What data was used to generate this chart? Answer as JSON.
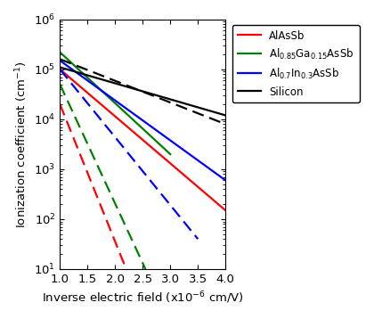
{
  "xlabel": "Inverse electric field (x10$^{-6}$ cm/V)",
  "ylabel": "Ionization coefficient (cm$^{-1}$)",
  "xlim": [
    1.0,
    4.0
  ],
  "ylim": [
    10,
    1000000.0
  ],
  "xticks": [
    1.0,
    1.5,
    2.0,
    2.5,
    3.0,
    3.5,
    4.0
  ],
  "lines": [
    {
      "color": "red",
      "label": "AlAsSb",
      "solid": {
        "x0": 1.0,
        "x1": 4.0,
        "y0": 100000.0,
        "y1": 150.0
      },
      "dash": {
        "x0": 1.0,
        "x1": 2.2,
        "y0": 20000.0,
        "y1": 10
      }
    },
    {
      "color": "green",
      "label": "Al$_{0.85}$Ga$_{0.15}$AsSb",
      "solid": {
        "x0": 1.0,
        "x1": 3.0,
        "y0": 220000.0,
        "y1": 2000.0
      },
      "dash": {
        "x0": 1.0,
        "x1": 2.55,
        "y0": 50000.0,
        "y1": 10
      }
    },
    {
      "color": "blue",
      "label": "Al$_{0.7}$In$_{0.3}$AsSb",
      "solid": {
        "x0": 1.0,
        "x1": 4.0,
        "y0": 150000.0,
        "y1": 600.0
      },
      "dash": {
        "x0": 1.0,
        "x1": 3.5,
        "y0": 100000.0,
        "y1": 40.0
      }
    },
    {
      "color": "black",
      "label": "Silicon",
      "solid": {
        "x0": 1.0,
        "x1": 4.0,
        "y0": 110000.0,
        "y1": 12000.0
      },
      "dash": {
        "x0": 1.0,
        "x1": 4.0,
        "y0": 160000.0,
        "y1": 8000.0
      }
    }
  ]
}
